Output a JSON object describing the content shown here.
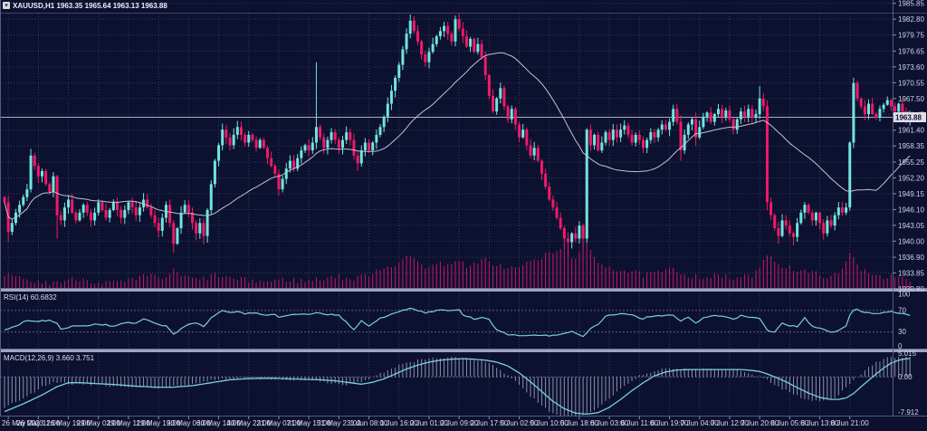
{
  "header": {
    "symbol": "XAUUSD,H1",
    "open": "1963.35",
    "high": "1965.64",
    "low": "1963.13",
    "close": "1963.88",
    "line": "XAUUSD,H1   1963.35 1965.64 1963.13 1963.88"
  },
  "colors": {
    "background": "#0d1130",
    "grid": "#343a5e",
    "bull": "#72e4dc",
    "bear": "#f01a68",
    "ma_line": "#c2c2d2",
    "indicator_line": "#79d0dc",
    "histogram": "#a9aec6",
    "volume": "#c81765",
    "text": "#d9dce8",
    "separator": "#9fa3bf",
    "badge_bg": "#dfdfe8",
    "badge_text": "#0d1130",
    "level_dotted": "#5a5f84",
    "current_price_line": "#c9ccdf"
  },
  "price_axis": {
    "labels": [
      "1985.85",
      "1982.80",
      "1979.75",
      "1976.65",
      "1973.60",
      "1970.55",
      "1967.50",
      "1964.45",
      "1961.40",
      "1958.35",
      "1955.25",
      "1952.20",
      "1949.15",
      "1946.10",
      "1943.05",
      "1940.00",
      "1936.90",
      "1933.85",
      "1930.80"
    ],
    "current": "1963.88",
    "current_value": 1963.88
  },
  "time_axis": {
    "labels": [
      "26 May 2023",
      "26 May 11:00",
      "26 May 19:00",
      "29 May 03:00",
      "29 May 11:00",
      "29 May 19:00",
      "30 May 06:00",
      "30 May 14:00",
      "30 May 22:00",
      "31 May 07:00",
      "31 May 15:00",
      "31 May 23:00",
      "1 Jun 08:00",
      "1 Jun 16:00",
      "2 Jun 01:00",
      "2 Jun 09:00",
      "2 Jun 17:00",
      "5 Jun 02:00",
      "5 Jun 10:00",
      "5 Jun 18:00",
      "6 Jun 03:00",
      "6 Jun 11:00",
      "6 Jun 19:00",
      "7 Jun 04:00",
      "7 Jun 12:00",
      "7 Jun 20:00",
      "8 Jun 05:00",
      "8 Jun 13:00",
      "8 Jun 21:00"
    ]
  },
  "chart_data": {
    "type": "candlestick",
    "symbol": "XAUUSD",
    "timeframe": "H1",
    "title": "XAUUSD,H1 1963.35 1965.64 1963.13 1963.88",
    "price_range": [
      1930.8,
      1985.85
    ],
    "ma_period": 30,
    "first_open": 1948.5,
    "closes": [
      1947.5,
      1941.8,
      1943.5,
      1945.5,
      1947,
      1948.5,
      1950,
      1956.5,
      1954.5,
      1952.5,
      1953.5,
      1951,
      1949.5,
      1952.5,
      1945,
      1944,
      1946.5,
      1948,
      1945.5,
      1944,
      1945.5,
      1947,
      1945.5,
      1944,
      1945.5,
      1947.5,
      1946,
      1944.5,
      1946,
      1947.5,
      1946,
      1944.5,
      1946,
      1947.5,
      1946.5,
      1945,
      1946.5,
      1948,
      1946.5,
      1945,
      1943.5,
      1942,
      1944.5,
      1947,
      1943.5,
      1939.5,
      1942.5,
      1945.5,
      1947,
      1945.5,
      1943.5,
      1941.5,
      1943.5,
      1941,
      1946,
      1951,
      1955.5,
      1958.5,
      1961.5,
      1960,
      1958.5,
      1960.5,
      1962,
      1960.5,
      1959,
      1960.5,
      1959.5,
      1958,
      1959.5,
      1958,
      1956,
      1954.5,
      1953,
      1950,
      1952,
      1954,
      1955.5,
      1954,
      1956,
      1957.5,
      1958.5,
      1957.5,
      1959,
      1962,
      1960,
      1958,
      1959.5,
      1961,
      1959.5,
      1958,
      1959.5,
      1961,
      1959.5,
      1956.5,
      1955,
      1957.5,
      1959,
      1957.5,
      1959,
      1960.5,
      1962,
      1964,
      1966.5,
      1969,
      1971.5,
      1974,
      1977,
      1980,
      1982.5,
      1980.5,
      1978.5,
      1976,
      1974.5,
      1976.5,
      1978,
      1979.5,
      1980.5,
      1981.5,
      1980,
      1978.5,
      1982.8,
      1981,
      1979.5,
      1977.5,
      1979,
      1976.5,
      1978,
      1975.5,
      1972,
      1968,
      1965,
      1967.5,
      1969.5,
      1966,
      1963.5,
      1965.5,
      1962.5,
      1960,
      1961.5,
      1958.5,
      1956.5,
      1958,
      1955.5,
      1953,
      1950.5,
      1948,
      1946.5,
      1944.5,
      1942.5,
      1940.5,
      1939.8,
      1941.5,
      1940.5,
      1943,
      1940.5,
      1961.5,
      1958.5,
      1960.5,
      1957.5,
      1959,
      1961,
      1959.5,
      1961.5,
      1960,
      1961.5,
      1962.3,
      1960.5,
      1959,
      1960.5,
      1959.5,
      1958,
      1959.5,
      1961,
      1960,
      1961.5,
      1962.5,
      1961.5,
      1963,
      1965.5,
      1963,
      1957.5,
      1960.5,
      1962.5,
      1963.5,
      1960,
      1962,
      1964,
      1964.8,
      1963,
      1964.5,
      1965.5,
      1964,
      1965.2,
      1963.5,
      1961.5,
      1963.5,
      1965,
      1964,
      1965.5,
      1963.8,
      1964.5,
      1967.5,
      1966,
      1947.5,
      1945,
      1942.5,
      1941,
      1944,
      1943,
      1941.5,
      1940.8,
      1943.5,
      1945.5,
      1947,
      1945.5,
      1944,
      1945.5,
      1943.5,
      1941.5,
      1944,
      1943,
      1945,
      1946.5,
      1945.5,
      1946.5,
      1959,
      1970.5,
      1967.5,
      1966,
      1964.5,
      1966.5,
      1964.5,
      1963.8,
      1965.5,
      1966.3,
      1967.2,
      1966,
      1965,
      1966.5,
      1965,
      1963.5,
      1963.88
    ],
    "high_overrides": {
      "7": 1957.8,
      "62": 1963.2,
      "83": 1974.5,
      "108": 1983.7,
      "117": 1982.3,
      "120": 1983.5,
      "178": 1966.3,
      "201": 1969.9,
      "226": 1971.5,
      "235": 1967.9
    },
    "low_overrides": {
      "1": 1939.9,
      "14": 1940.5,
      "45": 1937.8,
      "53": 1939.4,
      "73": 1948.8,
      "94": 1953.5,
      "149": 1938.4,
      "150": 1936.9,
      "154": 1938.6,
      "180": 1955.5,
      "184": 1958.4,
      "203": 1946.0,
      "206": 1939.5,
      "210": 1939.2,
      "218": 1940.3
    },
    "volume_waypoints": [
      [
        0,
        30
      ],
      [
        5,
        18
      ],
      [
        10,
        12
      ],
      [
        15,
        15
      ],
      [
        20,
        22
      ],
      [
        25,
        14
      ],
      [
        30,
        12
      ],
      [
        35,
        18
      ],
      [
        38,
        30
      ],
      [
        42,
        22
      ],
      [
        45,
        38
      ],
      [
        48,
        25
      ],
      [
        52,
        18
      ],
      [
        56,
        30
      ],
      [
        60,
        22
      ],
      [
        64,
        18
      ],
      [
        70,
        15
      ],
      [
        75,
        20
      ],
      [
        80,
        16
      ],
      [
        85,
        22
      ],
      [
        88,
        28
      ],
      [
        92,
        20
      ],
      [
        95,
        25
      ],
      [
        100,
        45
      ],
      [
        104,
        55
      ],
      [
        108,
        72
      ],
      [
        112,
        50
      ],
      [
        116,
        55
      ],
      [
        120,
        62
      ],
      [
        124,
        48
      ],
      [
        128,
        65
      ],
      [
        132,
        50
      ],
      [
        136,
        45
      ],
      [
        140,
        60
      ],
      [
        144,
        75
      ],
      [
        148,
        88
      ],
      [
        152,
        70
      ],
      [
        155,
        95
      ],
      [
        158,
        60
      ],
      [
        162,
        45
      ],
      [
        166,
        38
      ],
      [
        170,
        30
      ],
      [
        174,
        35
      ],
      [
        178,
        42
      ],
      [
        182,
        30
      ],
      [
        186,
        25
      ],
      [
        190,
        28
      ],
      [
        194,
        22
      ],
      [
        198,
        26
      ],
      [
        201,
        40
      ],
      [
        203,
        82
      ],
      [
        206,
        55
      ],
      [
        210,
        45
      ],
      [
        214,
        35
      ],
      [
        218,
        30
      ],
      [
        222,
        28
      ],
      [
        225,
        78
      ],
      [
        228,
        45
      ],
      [
        232,
        30
      ],
      [
        236,
        25
      ],
      [
        239,
        20
      ],
      [
        241,
        16
      ]
    ],
    "rsi": {
      "label": "RSI(14) 60.6832",
      "period": 14,
      "last": 60.6832,
      "axis": [
        100,
        70,
        30,
        0
      ],
      "overbought": 70,
      "oversold": 30,
      "waypoints": [
        [
          0,
          33
        ],
        [
          3,
          41
        ],
        [
          6,
          52
        ],
        [
          9,
          50
        ],
        [
          12,
          52
        ],
        [
          14,
          46
        ],
        [
          15,
          36
        ],
        [
          17,
          39
        ],
        [
          19,
          42
        ],
        [
          22,
          41
        ],
        [
          24,
          45
        ],
        [
          27,
          43
        ],
        [
          29,
          40
        ],
        [
          31,
          45
        ],
        [
          33,
          47
        ],
        [
          35,
          46
        ],
        [
          37,
          54
        ],
        [
          40,
          46
        ],
        [
          43,
          41
        ],
        [
          45,
          25
        ],
        [
          47,
          36
        ],
        [
          49,
          45
        ],
        [
          51,
          47
        ],
        [
          53,
          39
        ],
        [
          55,
          56
        ],
        [
          57,
          66
        ],
        [
          58,
          71
        ],
        [
          60,
          66
        ],
        [
          62,
          68
        ],
        [
          64,
          64
        ],
        [
          66,
          66
        ],
        [
          68,
          63
        ],
        [
          70,
          61
        ],
        [
          72,
          63
        ],
        [
          73,
          57
        ],
        [
          75,
          61
        ],
        [
          77,
          63
        ],
        [
          79,
          64
        ],
        [
          81,
          62
        ],
        [
          83,
          67
        ],
        [
          85,
          62
        ],
        [
          87,
          63
        ],
        [
          89,
          61
        ],
        [
          91,
          48
        ],
        [
          93,
          33
        ],
        [
          95,
          51
        ],
        [
          97,
          41
        ],
        [
          100,
          55
        ],
        [
          103,
          64
        ],
        [
          106,
          71
        ],
        [
          108,
          74
        ],
        [
          110,
          69
        ],
        [
          112,
          66
        ],
        [
          114,
          68
        ],
        [
          117,
          72
        ],
        [
          119,
          69
        ],
        [
          121,
          71
        ],
        [
          122,
          61
        ],
        [
          124,
          57
        ],
        [
          125,
          53
        ],
        [
          127,
          57
        ],
        [
          129,
          53
        ],
        [
          131,
          33
        ],
        [
          134,
          25
        ],
        [
          137,
          23
        ],
        [
          141,
          24
        ],
        [
          145,
          23
        ],
        [
          148,
          26
        ],
        [
          151,
          30
        ],
        [
          154,
          21
        ],
        [
          156,
          36
        ],
        [
          158,
          44
        ],
        [
          160,
          60
        ],
        [
          163,
          62
        ],
        [
          165,
          64
        ],
        [
          167,
          62
        ],
        [
          170,
          54
        ],
        [
          171,
          58
        ],
        [
          173,
          60
        ],
        [
          176,
          61
        ],
        [
          178,
          62
        ],
        [
          180,
          50
        ],
        [
          182,
          58
        ],
        [
          184,
          46
        ],
        [
          186,
          57
        ],
        [
          189,
          60
        ],
        [
          192,
          59
        ],
        [
          194,
          53
        ],
        [
          196,
          60
        ],
        [
          199,
          57
        ],
        [
          201,
          54
        ],
        [
          203,
          33
        ],
        [
          205,
          30
        ],
        [
          207,
          46
        ],
        [
          209,
          42
        ],
        [
          211,
          40
        ],
        [
          213,
          57
        ],
        [
          215,
          40
        ],
        [
          217,
          37
        ],
        [
          220,
          29
        ],
        [
          222,
          33
        ],
        [
          224,
          40
        ],
        [
          225,
          62
        ],
        [
          226,
          71
        ],
        [
          227,
          72
        ],
        [
          229,
          66
        ],
        [
          232,
          64
        ],
        [
          234,
          66
        ],
        [
          236,
          69
        ],
        [
          238,
          65
        ],
        [
          240,
          63
        ],
        [
          241,
          60.7
        ]
      ]
    },
    "macd": {
      "label": "MACD(12,26,9) 3.660 3.751",
      "fast": 12,
      "slow": 26,
      "signal": 9,
      "value": 3.66,
      "signal_value": 3.751,
      "axis": [
        5.015,
        0.0,
        -7.912
      ],
      "axis_labels": [
        "5.015",
        "0.00",
        "-7.912"
      ],
      "hist_lead": 4,
      "hist_gain": 1.07,
      "signal_waypoints": [
        [
          0,
          -7.1
        ],
        [
          5,
          -5.5
        ],
        [
          10,
          -3.7
        ],
        [
          14,
          -2.0
        ],
        [
          17,
          -1.2
        ],
        [
          20,
          -1.2
        ],
        [
          25,
          -1.4
        ],
        [
          30,
          -1.6
        ],
        [
          35,
          -1.9
        ],
        [
          40,
          -2.1
        ],
        [
          45,
          -2.1
        ],
        [
          50,
          -1.8
        ],
        [
          55,
          -1.2
        ],
        [
          60,
          -0.6
        ],
        [
          64,
          -0.4
        ],
        [
          68,
          -0.3
        ],
        [
          72,
          -0.3
        ],
        [
          76,
          -0.4
        ],
        [
          80,
          -0.5
        ],
        [
          84,
          -0.6
        ],
        [
          88,
          -0.8
        ],
        [
          92,
          -1.2
        ],
        [
          95,
          -1.5
        ],
        [
          98,
          -1.1
        ],
        [
          101,
          -0.4
        ],
        [
          104,
          0.6
        ],
        [
          107,
          1.6
        ],
        [
          110,
          2.4
        ],
        [
          113,
          3.0
        ],
        [
          116,
          3.4
        ],
        [
          119,
          3.6
        ],
        [
          122,
          3.7
        ],
        [
          125,
          3.6
        ],
        [
          128,
          3.4
        ],
        [
          131,
          3.0
        ],
        [
          134,
          2.2
        ],
        [
          137,
          0.8
        ],
        [
          140,
          -1.0
        ],
        [
          143,
          -3.0
        ],
        [
          146,
          -5.0
        ],
        [
          149,
          -6.5
        ],
        [
          152,
          -7.4
        ],
        [
          155,
          -7.6
        ],
        [
          158,
          -7.3
        ],
        [
          161,
          -6.2
        ],
        [
          164,
          -4.6
        ],
        [
          167,
          -2.8
        ],
        [
          170,
          -1.2
        ],
        [
          173,
          0.2
        ],
        [
          176,
          1.0
        ],
        [
          179,
          1.4
        ],
        [
          183,
          1.5
        ],
        [
          190,
          1.5
        ],
        [
          196,
          1.5
        ],
        [
          199,
          1.3
        ],
        [
          201,
          1.1
        ],
        [
          203,
          0.6
        ],
        [
          205,
          0.0
        ],
        [
          208,
          -1.0
        ],
        [
          211,
          -2.2
        ],
        [
          214,
          -3.3
        ],
        [
          217,
          -4.2
        ],
        [
          220,
          -4.6
        ],
        [
          222,
          -4.6
        ],
        [
          224,
          -4.3
        ],
        [
          226,
          -3.4
        ],
        [
          228,
          -2.0
        ],
        [
          230,
          -0.7
        ],
        [
          232,
          0.6
        ],
        [
          234,
          1.8
        ],
        [
          236,
          2.8
        ],
        [
          238,
          3.4
        ],
        [
          240,
          3.7
        ],
        [
          241,
          3.75
        ]
      ]
    }
  }
}
